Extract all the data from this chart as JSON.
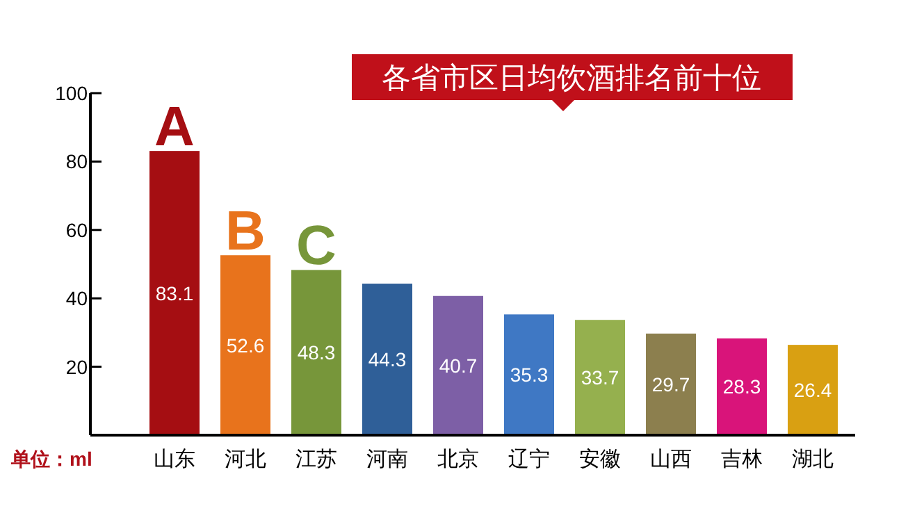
{
  "chart_data": {
    "type": "bar",
    "title": "各省市区日均饮酒排名前十位",
    "categories": [
      "山东",
      "河北",
      "江苏",
      "河南",
      "北京",
      "辽宁",
      "安徽",
      "山西",
      "吉林",
      "湖北"
    ],
    "values": [
      83.1,
      52.6,
      48.3,
      44.3,
      40.7,
      35.3,
      33.7,
      29.7,
      28.3,
      26.4
    ],
    "colors": [
      "#a50e12",
      "#e8731c",
      "#77963a",
      "#2f5f98",
      "#7d5fa6",
      "#3f78c4",
      "#95b04e",
      "#8c7f4e",
      "#d9147a",
      "#d9a012"
    ],
    "ylim": [
      0,
      100
    ],
    "yticks": [
      {
        "value": 0,
        "label": null
      },
      20,
      40,
      60,
      80,
      100
    ],
    "data_labels": true,
    "annotations": [
      {
        "text": "A",
        "x": "山东",
        "y": 83.1
      },
      {
        "text": "B",
        "x": "河北",
        "y": 52.6
      },
      {
        "text": "C",
        "x": "江苏",
        "y": 48.3
      },
      "单位：ml"
    ]
  }
}
